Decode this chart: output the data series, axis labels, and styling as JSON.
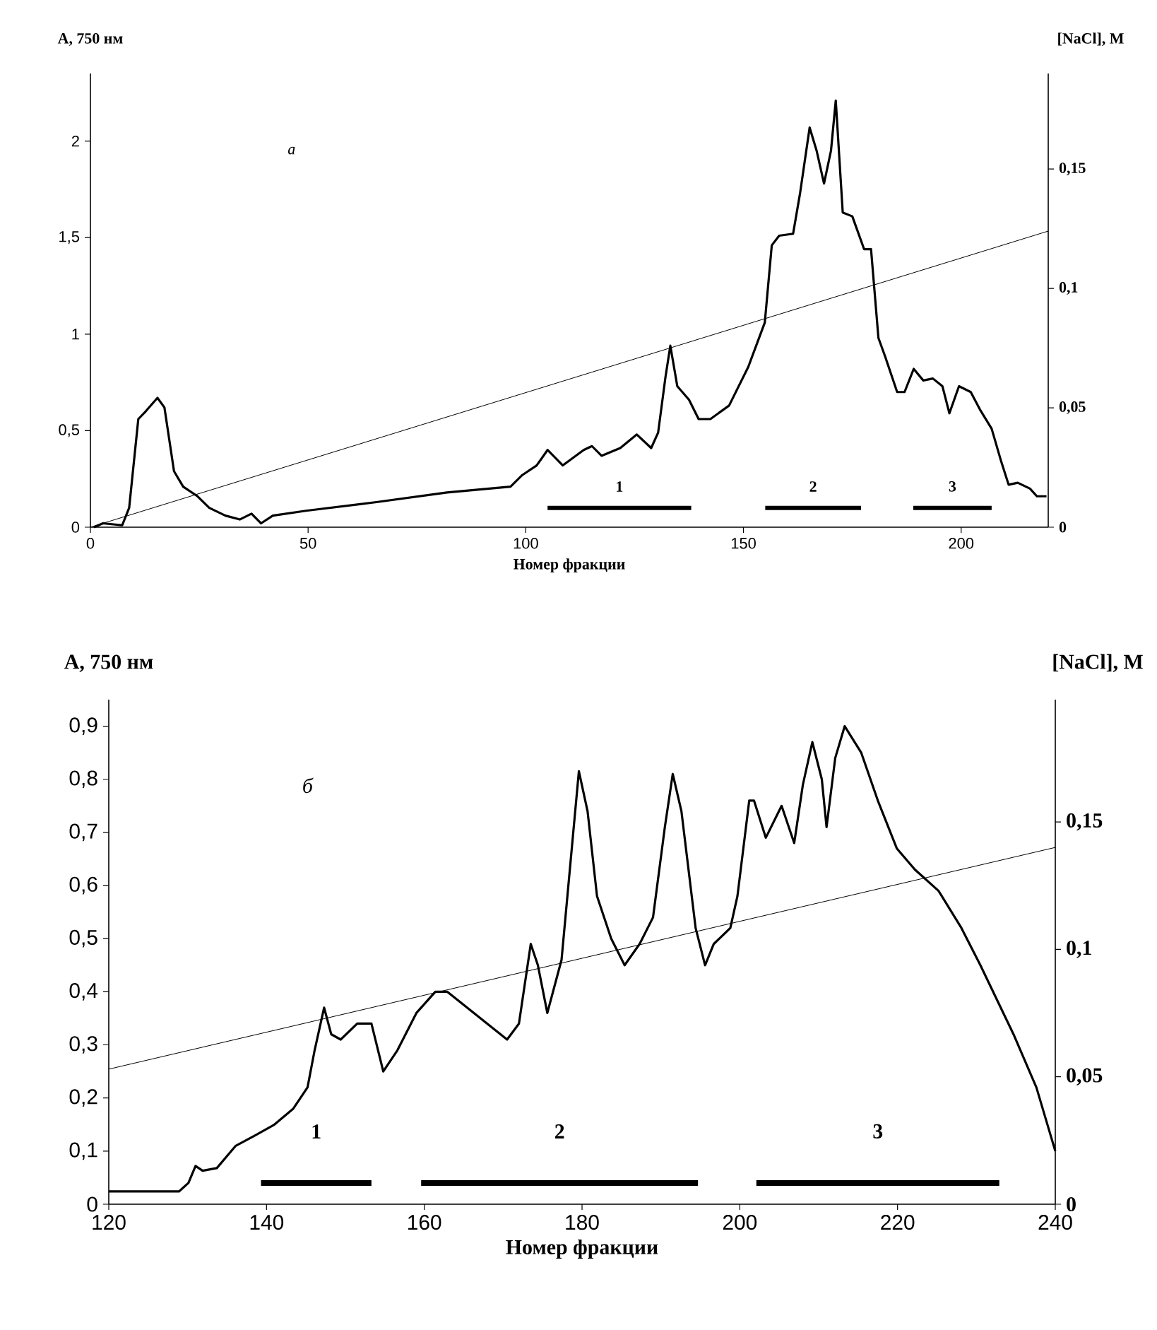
{
  "chart_data": [
    {
      "type": "line",
      "xlabel": "Номер фракции",
      "ylabel": "A, 750 нм",
      "y2label": "[NaCl], M",
      "annotations": [
        "а"
      ],
      "xlim": [
        0,
        220
      ],
      "ylim": [
        0,
        2.35
      ],
      "y2lim": [
        0,
        0.19
      ],
      "xticks": [
        0,
        50,
        100,
        150,
        200
      ],
      "yticks": [
        0,
        {
          "value": 0.5,
          "label": "0,5"
        },
        1,
        {
          "value": 1.5,
          "label": "1,5"
        },
        2
      ],
      "y2ticks": [
        0,
        {
          "value": 0.05,
          "label": "0,05"
        },
        {
          "value": 0.1,
          "label": "0,1"
        },
        {
          "value": 0.15,
          "label": "0,15"
        }
      ],
      "series": [
        {
          "name": "1",
          "color": "#000000",
          "x": [
            105,
            138
          ],
          "values": [
            0.1,
            0.1
          ]
        },
        {
          "name": "2",
          "color": "#000000",
          "x": [
            155,
            177
          ],
          "values": [
            0.1,
            0.1
          ]
        },
        {
          "name": "3",
          "color": "#000000",
          "x": [
            189,
            207
          ],
          "values": [
            0.1,
            0.1
          ]
        },
        {
          "color": "#000000",
          "x": [
            0.8,
            2.9,
            7.3,
            8.9,
            11,
            12.7,
            15.4,
            17,
            19.2,
            21.3,
            24.6,
            27.3,
            31,
            34.3,
            37,
            39.2,
            41.9,
            49.5,
            65.7,
            81.9,
            96.5,
            99.2,
            102.5,
            105,
            108.5,
            113.3,
            115.2,
            117.4,
            121.7,
            125.5,
            128.8,
            130.4,
            132.1,
            133.2,
            134.8,
            137.5,
            139.7,
            142.4,
            146.7,
            151.1,
            154.9,
            156.5,
            158.2,
            161.4,
            163,
            165.2,
            166.8,
            168.5,
            170.1,
            171.2,
            172.8,
            175,
            177.7,
            179.3,
            181,
            182.6,
            185.3,
            187,
            189.1,
            191.3,
            193.5,
            195.7,
            197.3,
            199.5,
            202.2,
            204.3,
            207,
            209.2,
            210.9,
            213,
            215.8,
            217.4,
            219.6
          ],
          "values": [
            0,
            0.02,
            0.01,
            0.1,
            0.56,
            0.6,
            0.67,
            0.62,
            0.29,
            0.21,
            0.16,
            0.1,
            0.06,
            0.04,
            0.07,
            0.02,
            0.06,
            0.085,
            0.13,
            0.18,
            0.21,
            0.27,
            0.32,
            0.4,
            0.32,
            0.4,
            0.42,
            0.37,
            0.41,
            0.48,
            0.41,
            0.49,
            0.78,
            0.94,
            0.73,
            0.66,
            0.56,
            0.56,
            0.63,
            0.83,
            1.06,
            1.46,
            1.51,
            1.52,
            1.73,
            2.07,
            1.95,
            1.78,
            1.95,
            2.21,
            1.63,
            1.61,
            1.44,
            1.44,
            0.98,
            0.88,
            0.7,
            0.7,
            0.82,
            0.76,
            0.77,
            0.73,
            0.59,
            0.73,
            0.7,
            0.61,
            0.51,
            0.34,
            0.22,
            0.23,
            0.2,
            0.16,
            0.16
          ]
        },
        {
          "color": "#000000",
          "axis": "y2",
          "x": [
            0,
            220
          ],
          "values": [
            0,
            0.124
          ]
        }
      ]
    },
    {
      "type": "line",
      "xlabel": "Номер фракции",
      "ylabel": "A, 750 нм",
      "y2label": "[NaCl], M",
      "annotations": [
        "б"
      ],
      "xlim": [
        120,
        240
      ],
      "ylim": [
        0,
        0.95
      ],
      "y2lim": [
        0,
        0.198
      ],
      "xticks": [
        120,
        140,
        160,
        180,
        200,
        220,
        240
      ],
      "yticks": [
        0,
        {
          "value": 0.1,
          "label": "0,1"
        },
        {
          "value": 0.2,
          "label": "0,2"
        },
        {
          "value": 0.3,
          "label": "0,3"
        },
        {
          "value": 0.4,
          "label": "0,4"
        },
        {
          "value": 0.5,
          "label": "0,5"
        },
        {
          "value": 0.6,
          "label": "0,6"
        },
        {
          "value": 0.7,
          "label": "0,7"
        },
        {
          "value": 0.8,
          "label": "0,8"
        },
        {
          "value": 0.9,
          "label": "0,9"
        }
      ],
      "y2ticks": [
        0,
        {
          "value": 0.05,
          "label": "0,05"
        },
        {
          "value": 0.1,
          "label": "0,1"
        },
        {
          "value": 0.15,
          "label": "0,15"
        }
      ],
      "series": [
        {
          "name": "1",
          "color": "#000000",
          "x": [
            139.3,
            153.3
          ],
          "values": [
            0.04,
            0.04
          ]
        },
        {
          "name": "2",
          "color": "#000000",
          "x": [
            159.6,
            194.7
          ],
          "values": [
            0.04,
            0.04
          ]
        },
        {
          "name": "3",
          "color": "#000000",
          "x": [
            202.1,
            232.9
          ],
          "values": [
            0.04,
            0.04
          ]
        },
        {
          "color": "#000000",
          "x": [
            120,
            128.9,
            130.1,
            131,
            131.9,
            133.7,
            136.1,
            138.6,
            141,
            143.4,
            145.2,
            146.1,
            147.3,
            148.2,
            149.4,
            151.5,
            153.3,
            154.8,
            156.6,
            159,
            161.4,
            162.9,
            170.5,
            172,
            173.5,
            174.4,
            175.6,
            177.4,
            179.6,
            180.7,
            181.9,
            183.7,
            185.4,
            187.3,
            189,
            190.5,
            191.5,
            192.6,
            194.4,
            195.6,
            196.7,
            198.8,
            199.7,
            201.2,
            201.8,
            203.3,
            205.3,
            206.9,
            208,
            209.2,
            210.4,
            211,
            212.1,
            213.3,
            215.4,
            217.5,
            219.9,
            222.2,
            225.2,
            228.1,
            230.5,
            234.7,
            237.6,
            240
          ],
          "values": [
            0.024,
            0.024,
            0.04,
            0.072,
            0.063,
            0.068,
            0.11,
            0.13,
            0.15,
            0.18,
            0.22,
            0.29,
            0.37,
            0.32,
            0.31,
            0.34,
            0.34,
            0.25,
            0.29,
            0.36,
            0.4,
            0.4,
            0.31,
            0.34,
            0.49,
            0.45,
            0.36,
            0.46,
            0.815,
            0.74,
            0.58,
            0.5,
            0.45,
            0.49,
            0.54,
            0.71,
            0.81,
            0.74,
            0.52,
            0.45,
            0.49,
            0.52,
            0.58,
            0.76,
            0.76,
            0.69,
            0.75,
            0.68,
            0.79,
            0.87,
            0.8,
            0.71,
            0.84,
            0.9,
            0.85,
            0.76,
            0.67,
            0.63,
            0.59,
            0.52,
            0.45,
            0.32,
            0.22,
            0.1
          ]
        },
        {
          "color": "#000000",
          "axis": "y2",
          "x": [
            120,
            240
          ],
          "values": [
            0.053,
            0.14
          ]
        }
      ]
    }
  ]
}
